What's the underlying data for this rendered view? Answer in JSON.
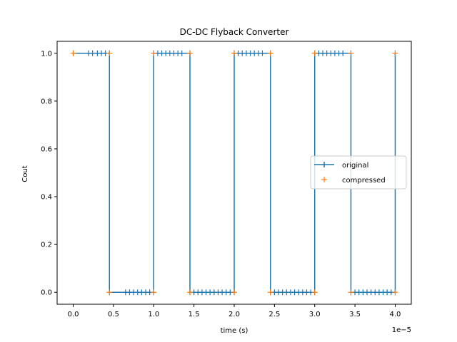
{
  "chart_data": {
    "type": "line",
    "title": "DC-DC Flyback Converter",
    "xlabel": "time (s)",
    "ylabel": "Cout",
    "x_offset_label": "1e−5",
    "xlim": [
      -2e-06,
      4.2e-05
    ],
    "ylim": [
      -0.05,
      1.05
    ],
    "xticks": [
      0,
      5e-06,
      1e-05,
      1.5e-05,
      2e-05,
      2.5e-05,
      3e-05,
      3.5e-05,
      4e-05
    ],
    "xtick_labels": [
      "0.0",
      "0.5",
      "1.0",
      "1.5",
      "2.0",
      "2.5",
      "3.0",
      "3.5",
      "4.0"
    ],
    "yticks": [
      0.0,
      0.2,
      0.4,
      0.6,
      0.8,
      1.0
    ],
    "ytick_labels": [
      "0.0",
      "0.2",
      "0.4",
      "0.6",
      "0.8",
      "1.0"
    ],
    "grid": false,
    "legend": "center-right",
    "series": [
      {
        "name": "original",
        "color": "#1f77b4",
        "marker": "|",
        "x": [
          0,
          1.9e-06,
          2.4e-06,
          3e-06,
          3.5e-06,
          4e-06,
          4.5e-06,
          4.5e-06,
          6.5e-06,
          7e-06,
          7.5e-06,
          8e-06,
          8.5e-06,
          9e-06,
          9.5e-06,
          1e-05,
          1e-05,
          1.05e-05,
          1.1e-05,
          1.15e-05,
          1.2e-05,
          1.25e-05,
          1.3e-05,
          1.35e-05,
          1.45e-05,
          1.45e-05,
          1.5e-05,
          1.55e-05,
          1.6e-05,
          1.65e-05,
          1.7e-05,
          1.75e-05,
          1.8e-05,
          1.85e-05,
          1.9e-05,
          1.95e-05,
          2e-05,
          2e-05,
          2.05e-05,
          2.1e-05,
          2.15e-05,
          2.2e-05,
          2.25e-05,
          2.3e-05,
          2.35e-05,
          2.45e-05,
          2.45e-05,
          2.5e-05,
          2.55e-05,
          2.6e-05,
          2.65e-05,
          2.7e-05,
          2.75e-05,
          2.8e-05,
          2.85e-05,
          2.9e-05,
          2.95e-05,
          3e-05,
          3e-05,
          3.05e-05,
          3.1e-05,
          3.15e-05,
          3.2e-05,
          3.25e-05,
          3.3e-05,
          3.35e-05,
          3.45e-05,
          3.45e-05,
          3.5e-05,
          3.55e-05,
          3.6e-05,
          3.65e-05,
          3.7e-05,
          3.75e-05,
          3.8e-05,
          3.85e-05,
          3.9e-05,
          3.95e-05,
          4e-05,
          4e-05
        ],
        "y": [
          1,
          1,
          1,
          1,
          1,
          1,
          1,
          0,
          0,
          0,
          0,
          0,
          0,
          0,
          0,
          0,
          1,
          1,
          1,
          1,
          1,
          1,
          1,
          1,
          1,
          0,
          0,
          0,
          0,
          0,
          0,
          0,
          0,
          0,
          0,
          0,
          0,
          1,
          1,
          1,
          1,
          1,
          1,
          1,
          1,
          1,
          0,
          0,
          0,
          0,
          0,
          0,
          0,
          0,
          0,
          0,
          0,
          0,
          1,
          1,
          1,
          1,
          1,
          1,
          1,
          1,
          1,
          0,
          0,
          0,
          0,
          0,
          0,
          0,
          0,
          0,
          0,
          0,
          0,
          1
        ]
      },
      {
        "name": "compressed",
        "color": "#ff7f0e",
        "marker": "+",
        "x": [
          0,
          4.5e-06,
          4.5e-06,
          1e-05,
          1e-05,
          1.45e-05,
          1.45e-05,
          2e-05,
          2e-05,
          2.45e-05,
          2.45e-05,
          3e-05,
          3e-05,
          3.45e-05,
          3.45e-05,
          4e-05,
          4e-05
        ],
        "y": [
          1,
          1,
          0,
          0,
          1,
          1,
          0,
          0,
          1,
          1,
          0,
          0,
          1,
          1,
          0,
          0,
          1
        ]
      }
    ]
  }
}
